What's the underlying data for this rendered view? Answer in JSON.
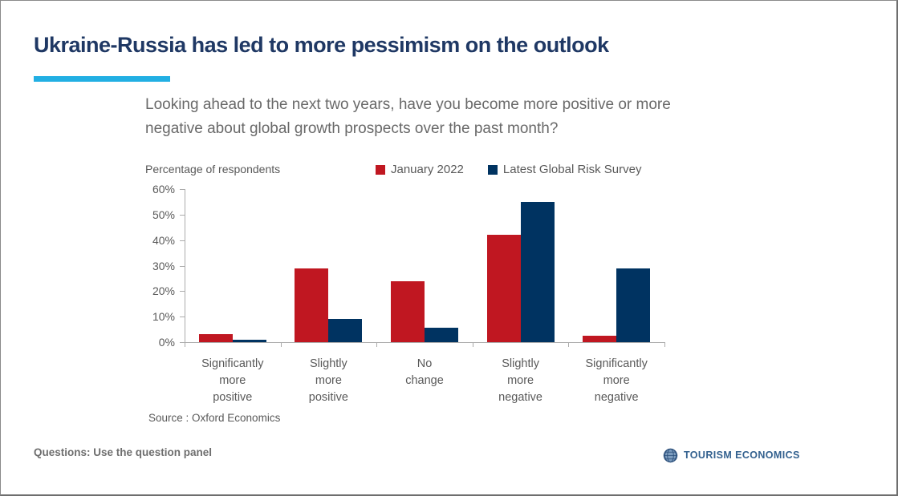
{
  "slide": {
    "title": "Ukraine-Russia has led to more pessimism on the outlook",
    "accent_color": "#22AFE3",
    "title_color": "#1F3864",
    "footer_left": "Questions: Use the question panel",
    "logo_text": "TOURISM ECONOMICS"
  },
  "chart_data": {
    "type": "bar",
    "title": "Looking ahead to the next two years, have you become more positive or more negative about global growth prospects over the past month?",
    "unit_label": "Percentage of respondents",
    "categories": [
      "Significantly more positive",
      "Slightly more positive",
      "No change",
      "Slightly more negative",
      "Significantly more negative"
    ],
    "series": [
      {
        "name": "January 2022",
        "color": "#C01721",
        "values": [
          3,
          29,
          24,
          42,
          2.5
        ]
      },
      {
        "name": "Latest Global Risk Survey",
        "color": "#003361",
        "values": [
          1,
          9,
          5.5,
          55,
          29
        ]
      }
    ],
    "ylim": [
      0,
      60
    ],
    "yticks": [
      "0%",
      "10%",
      "20%",
      "30%",
      "40%",
      "50%",
      "60%"
    ],
    "ytick_values": [
      0,
      10,
      20,
      30,
      40,
      50,
      60
    ],
    "grid": "off",
    "legend_position": "top",
    "source": "Source : Oxford Economics"
  }
}
